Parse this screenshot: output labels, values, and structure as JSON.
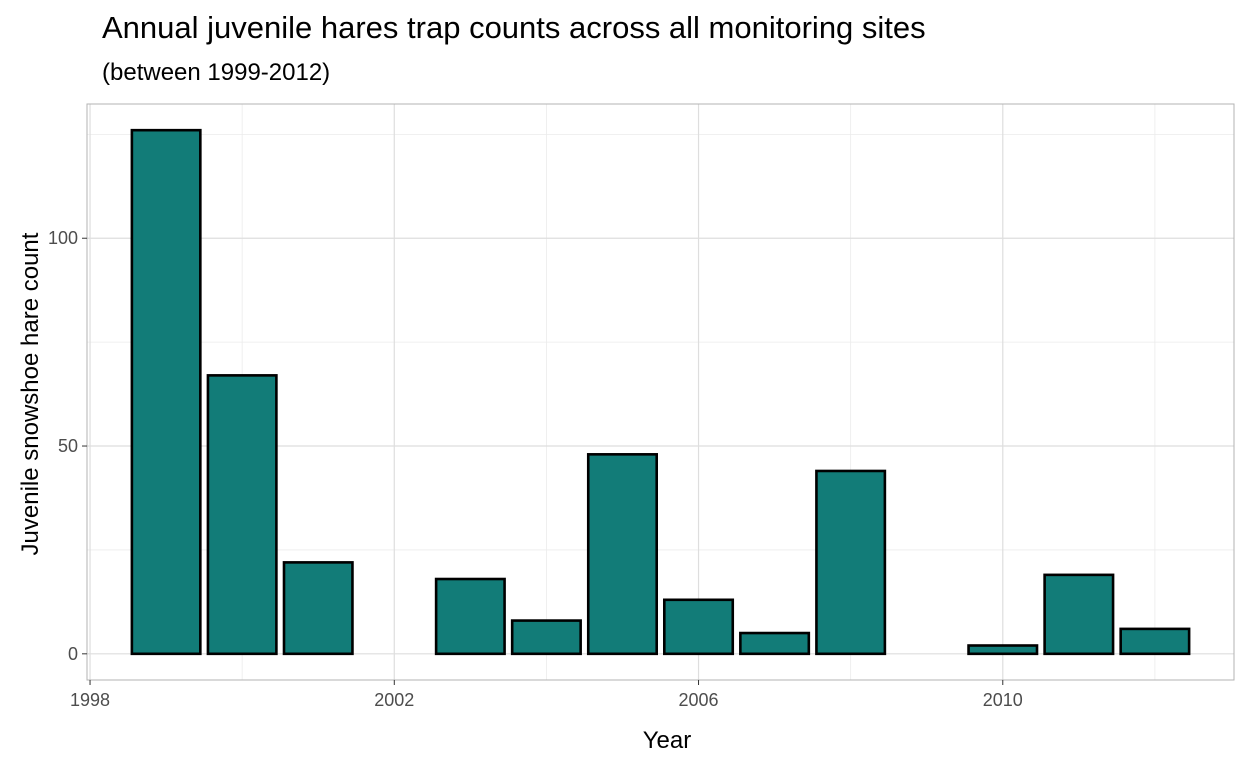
{
  "chart_data": {
    "type": "bar",
    "title": "Annual juvenile hares trap counts across all monitoring sites",
    "subtitle": "(between 1999-2012)",
    "xlabel": "Year",
    "ylabel": "Juvenile snowshoe hare count",
    "x": [
      1999,
      2000,
      2001,
      2002,
      2003,
      2004,
      2005,
      2006,
      2007,
      2008,
      2009,
      2010,
      2011,
      2012
    ],
    "values": [
      126,
      67,
      22,
      0,
      18,
      8,
      48,
      13,
      5,
      44,
      0,
      2,
      19,
      6
    ],
    "xlim": [
      1997.96,
      2013.04
    ],
    "ylim": [
      -6.3,
      132.3
    ],
    "x_ticks": [
      1998,
      2002,
      2006,
      2010
    ],
    "y_ticks": [
      0,
      50,
      100
    ],
    "bar_fill": "#127C78",
    "bar_outline": "#000000",
    "grid": true,
    "panel_border": "#b3b3b3",
    "grid_color": "#ebebeb",
    "legend": "none"
  }
}
